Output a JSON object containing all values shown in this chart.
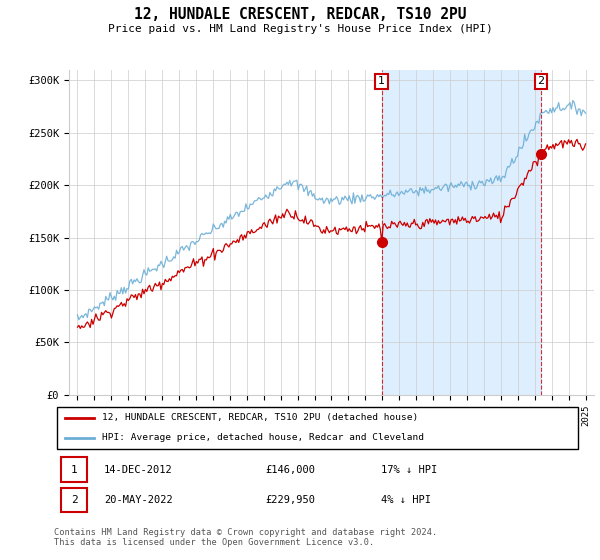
{
  "title": "12, HUNDALE CRESCENT, REDCAR, TS10 2PU",
  "subtitle": "Price paid vs. HM Land Registry's House Price Index (HPI)",
  "legend_entry1": "12, HUNDALE CRESCENT, REDCAR, TS10 2PU (detached house)",
  "legend_entry2": "HPI: Average price, detached house, Redcar and Cleveland",
  "annotation1_text": "14-DEC-2012",
  "annotation1_info": "£146,000",
  "annotation1_hpi": "17% ↓ HPI",
  "annotation1_price": 146000,
  "annotation1_year": 2012.958,
  "annotation2_text": "20-MAY-2022",
  "annotation2_info": "£229,950",
  "annotation2_hpi": "4% ↓ HPI",
  "annotation2_price": 229950,
  "annotation2_year": 2022.375,
  "footer": "Contains HM Land Registry data © Crown copyright and database right 2024.\nThis data is licensed under the Open Government Licence v3.0.",
  "hpi_color": "#6baed6",
  "price_color": "#cc0000",
  "annotation_color": "#cc0000",
  "shade_color": "#ddeeff",
  "ylim_min": 0,
  "ylim_max": 310000,
  "ylabel_ticks": [
    0,
    50000,
    100000,
    150000,
    200000,
    250000,
    300000
  ],
  "ylabel_labels": [
    "£0",
    "£50K",
    "£100K",
    "£150K",
    "£200K",
    "£250K",
    "£300K"
  ],
  "xmin": 1994.5,
  "xmax": 2025.5
}
